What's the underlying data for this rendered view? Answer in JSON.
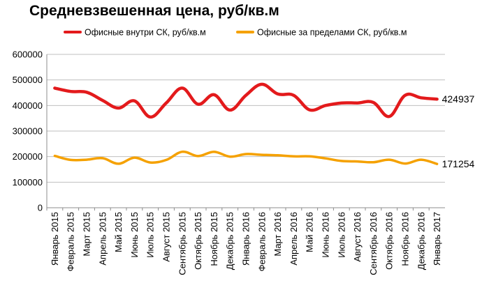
{
  "chart_data": {
    "type": "line",
    "title": "Средневзвешенная цена, руб/кв.м",
    "xlabel": "",
    "ylabel": "",
    "ylim": [
      0,
      600000
    ],
    "yticks": [
      0,
      100000,
      200000,
      300000,
      400000,
      500000,
      600000
    ],
    "grid": "horizontal",
    "legend_position": "top",
    "categories": [
      "Январь 2015",
      "Февраль 2015",
      "Март 2015",
      "Апрель 2015",
      "Май 2015",
      "Июнь 2015",
      "Июль 2015",
      "Август 2015",
      "Сентябрь 2015",
      "Октябрь 2015",
      "Ноябрь 2015",
      "Декабрь 2015",
      "Январь 2016",
      "Февраль 2016",
      "Март 2016",
      "Апрель 2016",
      "Май 2016",
      "Июнь 2016",
      "Июль 2016",
      "Август 2016",
      "Сентябрь 2016",
      "Октябрь 2016",
      "Ноябрь 2016",
      "Декабрь 2016",
      "Январь 2017"
    ],
    "series": [
      {
        "name": "Офисные внутри СК, руб/кв.м",
        "color": "#e31a1c",
        "values": [
          468000,
          455000,
          452000,
          420000,
          390000,
          418000,
          355000,
          410000,
          468000,
          405000,
          442000,
          382000,
          440000,
          483000,
          445000,
          440000,
          383000,
          400000,
          410000,
          410000,
          412000,
          357000,
          440000,
          430000,
          424937
        ],
        "end_label": "424937"
      },
      {
        "name": "Офисные за пределами СК, руб/кв.м",
        "color": "#f5a100",
        "values": [
          203000,
          187000,
          188000,
          194000,
          172000,
          196000,
          177000,
          187000,
          219000,
          202000,
          219000,
          200000,
          210000,
          207000,
          205000,
          201000,
          201000,
          193000,
          183000,
          181000,
          178000,
          188000,
          173000,
          188000,
          171254
        ],
        "end_label": "171254"
      }
    ]
  }
}
